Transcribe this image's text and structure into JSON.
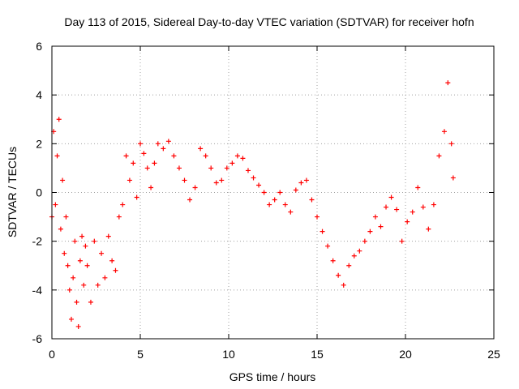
{
  "chart_data": {
    "type": "scatter",
    "title": "Day 113 of 2015, Sidereal Day-to-day VTEC variation (SDTVAR) for receiver hofn",
    "xlabel": "GPS time / hours",
    "ylabel": "SDTVAR / TECUs",
    "xlim": [
      0,
      25
    ],
    "ylim": [
      -6,
      6
    ],
    "x_ticks": [
      "0",
      "5",
      "10",
      "15",
      "20",
      "25"
    ],
    "y_ticks": [
      "-6",
      "-4",
      "-2",
      "0",
      "2",
      "4",
      "6"
    ],
    "grid": true,
    "marker": "+",
    "series_color": "#ff0000",
    "series": [
      {
        "name": "SDTVAR",
        "x": [
          0.0,
          0.1,
          0.2,
          0.3,
          0.4,
          0.5,
          0.6,
          0.7,
          0.8,
          0.9,
          1.0,
          1.1,
          1.2,
          1.3,
          1.4,
          1.5,
          1.6,
          1.7,
          1.8,
          1.9,
          2.0,
          2.2,
          2.4,
          2.6,
          2.8,
          3.0,
          3.2,
          3.4,
          3.6,
          3.8,
          4.0,
          4.2,
          4.4,
          4.6,
          4.8,
          5.0,
          5.2,
          5.4,
          5.6,
          5.8,
          6.0,
          6.3,
          6.6,
          6.9,
          7.2,
          7.5,
          7.8,
          8.1,
          8.4,
          8.7,
          9.0,
          9.3,
          9.6,
          9.9,
          10.2,
          10.5,
          10.8,
          11.1,
          11.4,
          11.7,
          12.0,
          12.3,
          12.6,
          12.9,
          13.2,
          13.5,
          13.8,
          14.1,
          14.4,
          14.7,
          15.0,
          15.3,
          15.6,
          15.9,
          16.2,
          16.5,
          16.8,
          17.1,
          17.4,
          17.7,
          18.0,
          18.3,
          18.6,
          18.9,
          19.2,
          19.5,
          19.8,
          20.1,
          20.4,
          20.7,
          21.0,
          21.3,
          21.6,
          21.9,
          22.2,
          22.4,
          22.6,
          22.7
        ],
        "y": [
          -1.0,
          2.5,
          -0.5,
          1.5,
          3.0,
          -1.5,
          0.5,
          -2.5,
          -1.0,
          -3.0,
          -4.0,
          -5.2,
          -3.5,
          -2.0,
          -4.5,
          -5.5,
          -2.8,
          -1.8,
          -3.8,
          -2.2,
          -3.0,
          -4.5,
          -2.0,
          -3.8,
          -2.5,
          -3.5,
          -1.8,
          -2.8,
          -3.2,
          -1.0,
          -0.5,
          1.5,
          0.5,
          1.2,
          -0.2,
          2.0,
          1.6,
          1.0,
          0.2,
          1.2,
          2.0,
          1.8,
          2.1,
          1.5,
          1.0,
          0.5,
          -0.3,
          0.2,
          1.8,
          1.5,
          1.0,
          0.4,
          0.5,
          1.0,
          1.2,
          1.5,
          1.4,
          0.9,
          0.6,
          0.3,
          0.0,
          -0.5,
          -0.3,
          0.0,
          -0.5,
          -0.8,
          0.1,
          0.4,
          0.5,
          -0.3,
          -1.0,
          -1.6,
          -2.2,
          -2.8,
          -3.4,
          -3.8,
          -3.0,
          -2.6,
          -2.4,
          -2.0,
          -1.6,
          -1.0,
          -1.4,
          -0.6,
          -0.2,
          -0.7,
          -2.0,
          -1.2,
          -0.8,
          0.2,
          -0.6,
          -1.5,
          -0.5,
          1.5,
          2.5,
          4.5,
          2.0,
          0.6
        ]
      }
    ]
  }
}
